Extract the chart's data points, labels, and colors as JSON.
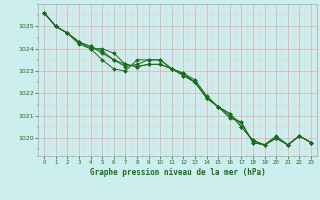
{
  "line1": [
    1025.6,
    1025.0,
    1024.7,
    1024.3,
    1024.0,
    1024.0,
    1023.8,
    1023.3,
    1023.2,
    1023.3,
    1023.3,
    1023.1,
    1022.9,
    1022.6,
    1021.9,
    1021.4,
    1021.0,
    1020.7,
    1019.8,
    1019.7,
    1020.1,
    1019.7,
    1020.1,
    1019.8
  ],
  "line2": [
    1025.6,
    1025.0,
    1024.7,
    1024.3,
    1024.1,
    1023.9,
    1023.5,
    1023.3,
    1023.2,
    1023.3,
    1023.3,
    1023.1,
    1022.9,
    1022.5,
    1021.8,
    1021.4,
    1020.9,
    1020.7,
    1019.8,
    1019.7,
    1020.0,
    1019.7,
    1020.1,
    1019.8
  ],
  "line3": [
    1025.6,
    1025.0,
    1024.7,
    1024.3,
    1024.1,
    1023.8,
    1023.5,
    1023.2,
    1023.3,
    1023.5,
    1023.5,
    1023.1,
    1022.8,
    1022.5,
    1021.8,
    1021.4,
    1021.1,
    1020.5,
    1019.9,
    1019.7,
    1020.0,
    1019.7,
    1020.1,
    1019.8
  ],
  "line4": [
    1025.6,
    1025.0,
    1024.7,
    1024.2,
    1024.0,
    1023.5,
    1023.1,
    1023.0,
    1023.5,
    1023.5,
    1023.5,
    1023.1,
    1022.8,
    1022.5,
    1021.8,
    1021.4,
    1021.1,
    1020.5,
    1019.9,
    1019.7,
    1020.0,
    1019.7,
    1020.1,
    1019.8
  ],
  "x": [
    0,
    1,
    2,
    3,
    4,
    5,
    6,
    7,
    8,
    9,
    10,
    11,
    12,
    13,
    14,
    15,
    16,
    17,
    18,
    19,
    20,
    21,
    22,
    23
  ],
  "line_color": "#1a6b1a",
  "marker": "D",
  "marker_size": 2,
  "background_color": "#cceeee",
  "grid_color_major": "#e8aaaa",
  "grid_color_minor": "#f0cccc",
  "xlabel": "Graphe pression niveau de la mer (hPa)",
  "xlabel_color": "#1a6b1a",
  "ylabel_ticks": [
    1020,
    1021,
    1022,
    1023,
    1024,
    1025
  ],
  "ylim": [
    1019.2,
    1026.0
  ],
  "xlim": [
    -0.5,
    23.5
  ]
}
